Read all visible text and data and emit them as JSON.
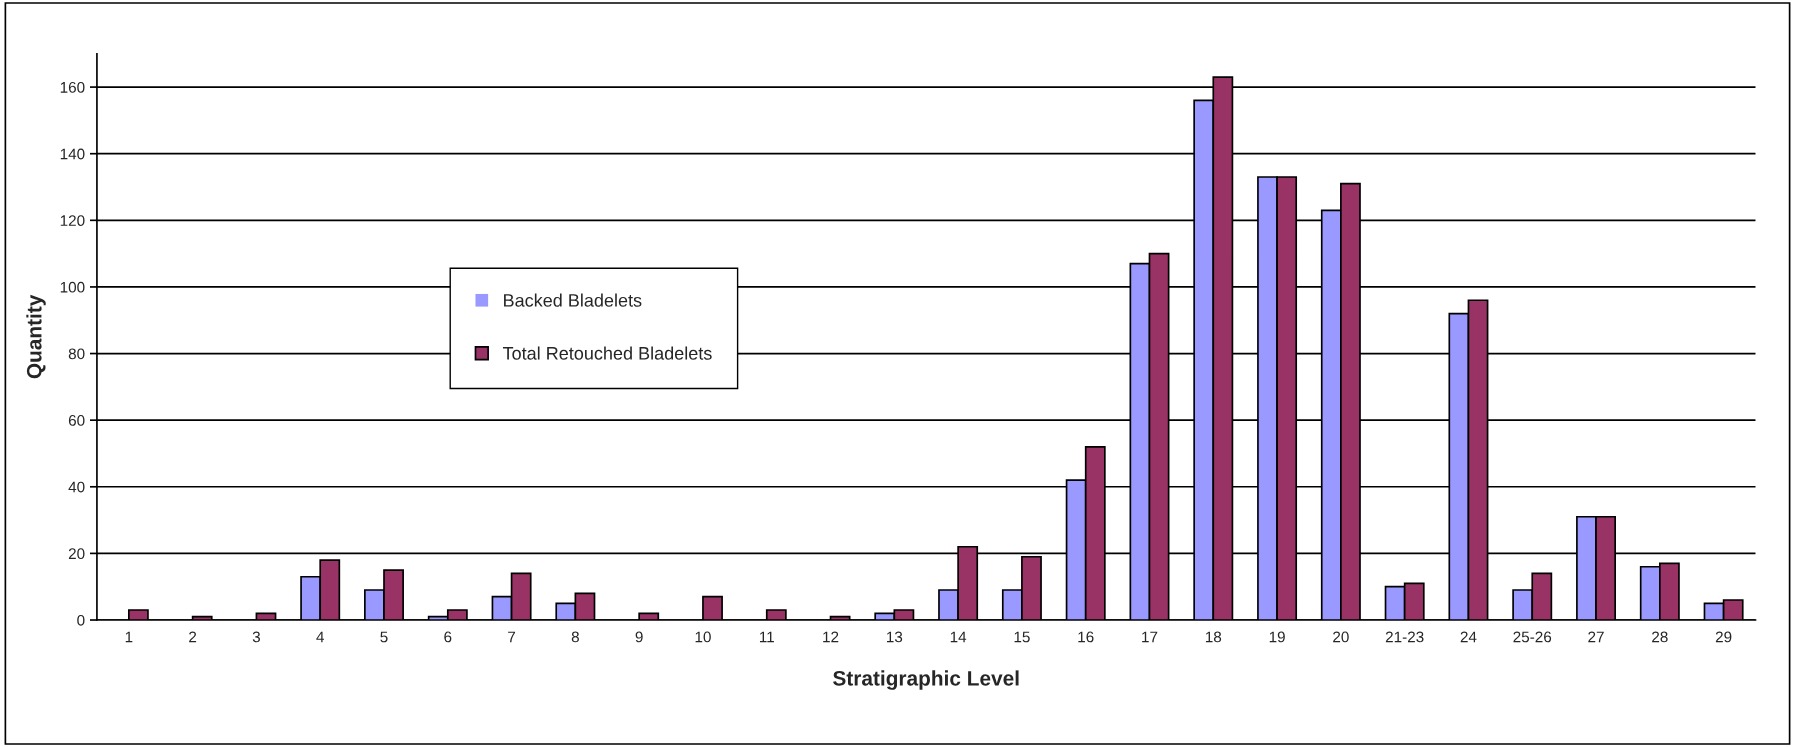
{
  "chart_data": {
    "type": "bar",
    "xlabel": "Stratigraphic Level",
    "ylabel": "Quantity",
    "categories": [
      "1",
      "2",
      "3",
      "4",
      "5",
      "6",
      "7",
      "8",
      "9",
      "10",
      "11",
      "12",
      "13",
      "14",
      "15",
      "16",
      "17",
      "18",
      "19",
      "20",
      "21-23",
      "24",
      "25-26",
      "27",
      "28",
      "29"
    ],
    "series": [
      {
        "name": "Backed Bladelets",
        "color": "#9999ff",
        "values": [
          0,
          0,
          0,
          13,
          9,
          1,
          7,
          5,
          0,
          0,
          0,
          0,
          2,
          9,
          9,
          42,
          107,
          156,
          133,
          123,
          10,
          92,
          9,
          31,
          16,
          5
        ]
      },
      {
        "name": "Total Retouched Bladelets",
        "color": "#993366",
        "values": [
          3,
          1,
          2,
          18,
          15,
          3,
          14,
          8,
          2,
          7,
          3,
          1,
          3,
          22,
          19,
          52,
          110,
          163,
          133,
          131,
          11,
          96,
          14,
          31,
          17,
          6
        ]
      }
    ],
    "ylim": [
      0,
      170
    ],
    "yticks": [
      0,
      20,
      40,
      60,
      80,
      100,
      120,
      140,
      160
    ],
    "grid": "y",
    "legend": "left"
  }
}
